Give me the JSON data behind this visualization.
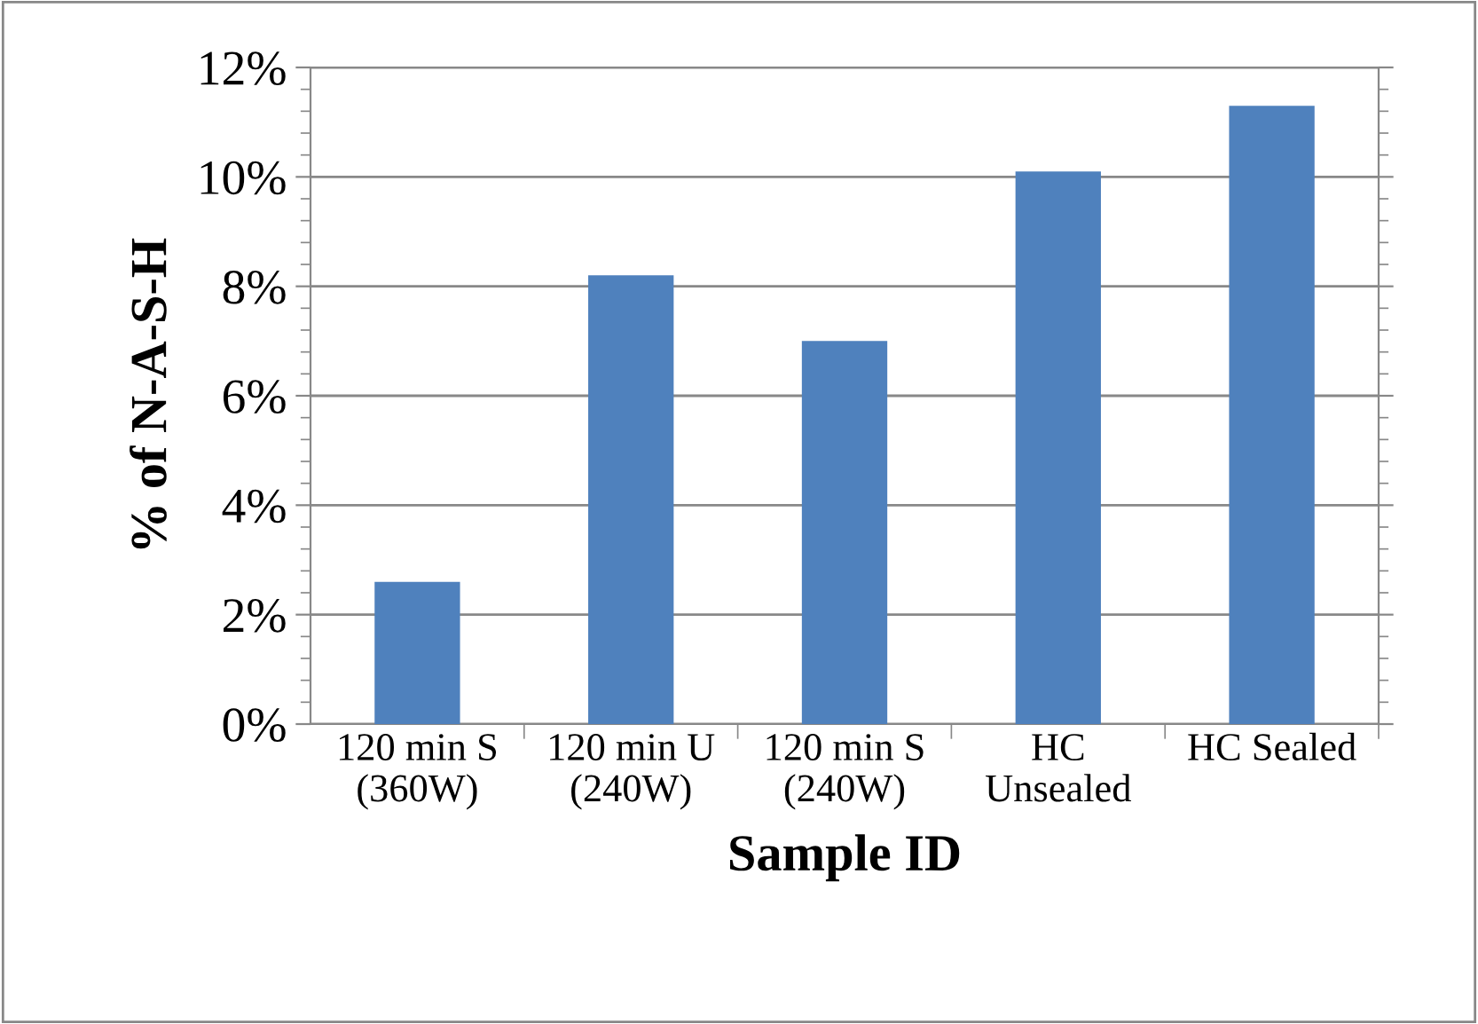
{
  "chart_data": {
    "type": "bar",
    "xlabel": "Sample ID",
    "ylabel": "% of N-A-S-H",
    "categories": [
      "120 min S\n(360W)",
      "120 min U\n(240W)",
      "120 min S\n(240W)",
      "HC\nUnsealed",
      "HC Sealed"
    ],
    "values": [
      2.6,
      8.2,
      7.0,
      10.1,
      11.3
    ],
    "color": "#4f81bd",
    "ylim": [
      0,
      12
    ],
    "yticks": [
      {
        "value": 0,
        "label": "0%"
      },
      {
        "value": 2,
        "label": "2%"
      },
      {
        "value": 4,
        "label": "4%"
      },
      {
        "value": 6,
        "label": "6%"
      },
      {
        "value": 8,
        "label": "8%"
      },
      {
        "value": 10,
        "label": "10%"
      },
      {
        "value": 12,
        "label": "12%"
      }
    ],
    "grid": "y",
    "legend": false
  }
}
